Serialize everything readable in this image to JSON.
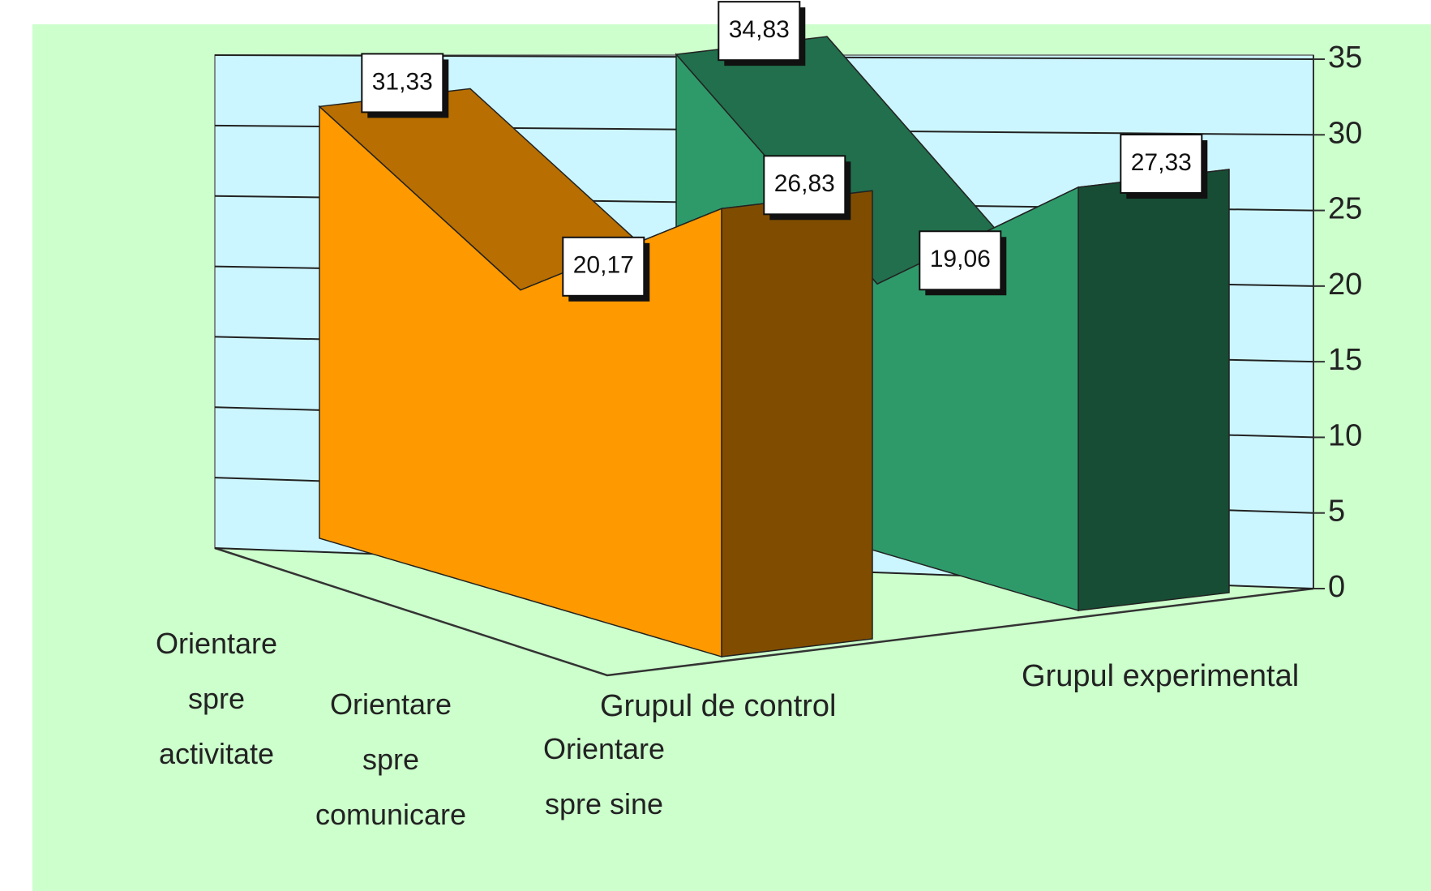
{
  "chart_data": {
    "type": "area3d",
    "categories": [
      "Orientare spre activitate",
      "Orientare spre comunicare",
      "Orientare spre sine"
    ],
    "series": [
      {
        "name": "Grupul de control",
        "color": "#ff9900",
        "values": [
          31.33,
          20.17,
          26.83
        ],
        "value_labels": [
          "31,33",
          "20,17",
          "26,83"
        ]
      },
      {
        "name": "Grupul experimental",
        "color": "#2e9a6a",
        "values": [
          34.83,
          19.06,
          27.33
        ],
        "value_labels": [
          "34,83",
          "19,06",
          "27,33"
        ]
      }
    ],
    "ylim": [
      0,
      35
    ],
    "yticks": [
      0,
      5,
      10,
      15,
      20,
      25,
      30,
      35
    ],
    "grid": true
  }
}
